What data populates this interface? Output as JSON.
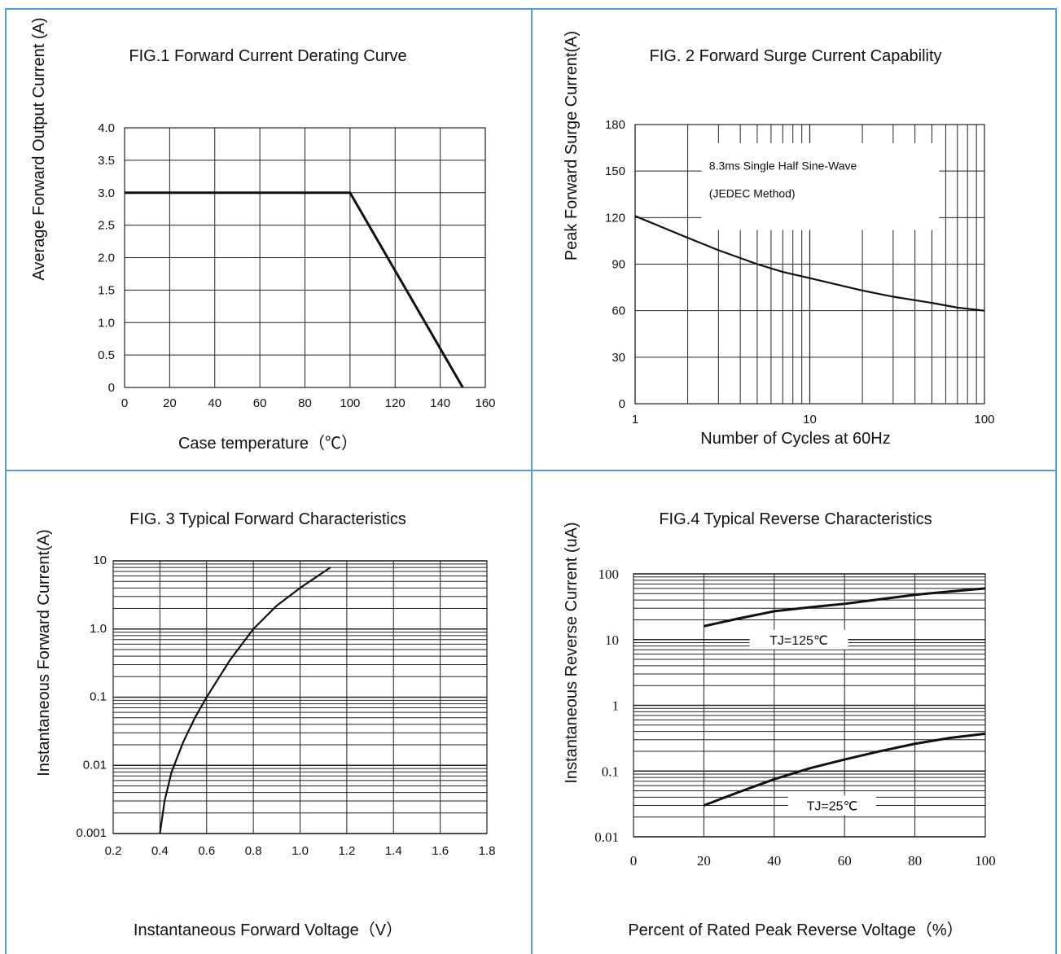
{
  "chart_data": [
    {
      "type": "line",
      "title": "FIG.1 Forward Current Derating Curve",
      "xlabel": "Case temperature（℃）",
      "ylabel": "Average Forward Output Current (A)",
      "xlim": [
        0,
        160
      ],
      "ylim": [
        0,
        4.0
      ],
      "x_ticks": [
        "0",
        "20",
        "40",
        "60",
        "80",
        "100",
        "120",
        "140",
        "160"
      ],
      "y_ticks": [
        "0",
        "0.5",
        "1.0",
        "1.5",
        "2.0",
        "2.5",
        "3.0",
        "3.5",
        "4.0"
      ],
      "grid": true,
      "series": [
        {
          "x": [
            0,
            100,
            150
          ],
          "y": [
            3.0,
            3.0,
            0
          ]
        }
      ]
    },
    {
      "type": "line",
      "title": "FIG. 2 Forward Surge Current Capability",
      "xlabel": "Number of Cycles at 60Hz",
      "ylabel": "Peak Forward Surge Current(A)",
      "xscale": "log",
      "xlim": [
        1,
        100
      ],
      "ylim": [
        0,
        180
      ],
      "x_ticks": [
        "1",
        "10",
        "100"
      ],
      "y_ticks": [
        "0",
        "30",
        "60",
        "90",
        "120",
        "150",
        "180"
      ],
      "grid": true,
      "annotations": [
        "8.3ms Single Half Sine-Wave",
        "(JEDEC Method)"
      ],
      "series": [
        {
          "x": [
            1,
            2,
            3,
            5,
            7,
            10,
            20,
            30,
            50,
            70,
            100
          ],
          "y": [
            121,
            107,
            99,
            90,
            85,
            81,
            73,
            69,
            65,
            62,
            60
          ]
        }
      ]
    },
    {
      "type": "line",
      "title": "FIG. 3 Typical Forward Characteristics",
      "xlabel": "Instantaneous Forward Voltage（V）",
      "ylabel": "Instantaneous Forward Current(A)",
      "yscale": "log",
      "xlim": [
        0.2,
        1.8
      ],
      "ylim": [
        0.001,
        10
      ],
      "x_ticks": [
        "0.2",
        "0.4",
        "0.6",
        "0.8",
        "1.0",
        "1.2",
        "1.4",
        "1.6",
        "1.8"
      ],
      "y_ticks": [
        "0.001",
        "0.01",
        "0.1",
        "1.0",
        "10"
      ],
      "grid": true,
      "series": [
        {
          "x": [
            0.4,
            0.42,
            0.45,
            0.5,
            0.55,
            0.6,
            0.7,
            0.8,
            0.9,
            1.0,
            1.13
          ],
          "y": [
            0.001,
            0.003,
            0.008,
            0.022,
            0.05,
            0.1,
            0.35,
            1.0,
            2.2,
            4.0,
            8.0
          ]
        }
      ]
    },
    {
      "type": "line",
      "title": "FIG.4 Typical Reverse Characteristics",
      "xlabel": "Percent of Rated Peak Reverse Voltage（%）",
      "ylabel": "Instantaneous Reverse Current (uA)",
      "yscale": "log",
      "xlim": [
        0,
        100
      ],
      "ylim": [
        0.01,
        100
      ],
      "x_ticks": [
        "0",
        "20",
        "40",
        "60",
        "80",
        "100"
      ],
      "y_ticks": [
        "0.01",
        "0.1",
        "1",
        "10",
        "100"
      ],
      "grid": true,
      "series": [
        {
          "name": "TJ=125℃",
          "x": [
            20,
            30,
            40,
            50,
            60,
            70,
            80,
            90,
            100
          ],
          "y": [
            16,
            21,
            27,
            31,
            35,
            41,
            48,
            54,
            60
          ]
        },
        {
          "name": "TJ=25℃",
          "x": [
            20,
            30,
            40,
            50,
            60,
            70,
            80,
            90,
            100
          ],
          "y": [
            0.03,
            0.048,
            0.075,
            0.11,
            0.15,
            0.2,
            0.26,
            0.32,
            0.37
          ]
        }
      ]
    }
  ]
}
